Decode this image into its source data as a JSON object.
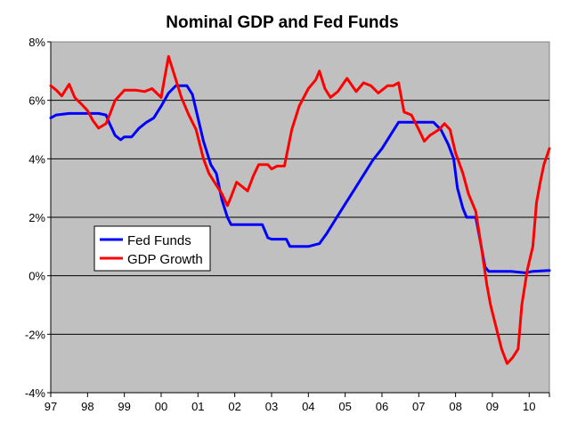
{
  "chart_data": {
    "type": "line",
    "title": "Nominal GDP and Fed Funds",
    "xlabel": "",
    "ylabel": "",
    "xlim": [
      1997,
      2010.55
    ],
    "ylim": [
      -4,
      8
    ],
    "y_ticks": [
      -4,
      -2,
      0,
      2,
      4,
      6,
      8
    ],
    "y_tick_labels": [
      "-4%",
      "-2%",
      "0%",
      "2%",
      "4%",
      "6%",
      "8%"
    ],
    "x_ticks": [
      1997,
      1998,
      1999,
      2000,
      2001,
      2002,
      2003,
      2004,
      2005,
      2006,
      2007,
      2008,
      2009,
      2010
    ],
    "x_tick_labels": [
      "97",
      "98",
      "99",
      "00",
      "01",
      "02",
      "03",
      "04",
      "05",
      "06",
      "07",
      "08",
      "09",
      "10"
    ],
    "grid": "horizontal",
    "plot_background": "#c0c0c0",
    "legend": {
      "position": "left-middle",
      "entries": [
        "Fed Funds",
        "GDP Growth"
      ]
    },
    "series": [
      {
        "name": "Fed Funds",
        "color": "#0000ff",
        "points": [
          [
            1997.0,
            5.4
          ],
          [
            1997.15,
            5.5
          ],
          [
            1997.5,
            5.55
          ],
          [
            1997.9,
            5.55
          ],
          [
            1998.3,
            5.55
          ],
          [
            1998.5,
            5.5
          ],
          [
            1998.6,
            5.2
          ],
          [
            1998.75,
            4.8
          ],
          [
            1998.9,
            4.65
          ],
          [
            1999.0,
            4.75
          ],
          [
            1999.2,
            4.75
          ],
          [
            1999.4,
            5.05
          ],
          [
            1999.6,
            5.25
          ],
          [
            1999.8,
            5.4
          ],
          [
            2000.0,
            5.8
          ],
          [
            2000.2,
            6.25
          ],
          [
            2000.4,
            6.5
          ],
          [
            2000.7,
            6.5
          ],
          [
            2000.85,
            6.2
          ],
          [
            2001.0,
            5.4
          ],
          [
            2001.15,
            4.6
          ],
          [
            2001.35,
            3.8
          ],
          [
            2001.5,
            3.5
          ],
          [
            2001.65,
            2.6
          ],
          [
            2001.8,
            2.0
          ],
          [
            2001.9,
            1.75
          ],
          [
            2002.5,
            1.75
          ],
          [
            2002.75,
            1.75
          ],
          [
            2002.9,
            1.3
          ],
          [
            2003.0,
            1.25
          ],
          [
            2003.4,
            1.25
          ],
          [
            2003.5,
            1.0
          ],
          [
            2004.0,
            1.0
          ],
          [
            2004.3,
            1.1
          ],
          [
            2004.5,
            1.45
          ],
          [
            2004.75,
            1.95
          ],
          [
            2005.0,
            2.45
          ],
          [
            2005.25,
            2.95
          ],
          [
            2005.5,
            3.45
          ],
          [
            2005.75,
            3.95
          ],
          [
            2006.0,
            4.35
          ],
          [
            2006.25,
            4.85
          ],
          [
            2006.45,
            5.25
          ],
          [
            2006.9,
            5.25
          ],
          [
            2007.4,
            5.25
          ],
          [
            2007.6,
            5.0
          ],
          [
            2007.8,
            4.5
          ],
          [
            2007.95,
            4.0
          ],
          [
            2008.05,
            3.0
          ],
          [
            2008.2,
            2.3
          ],
          [
            2008.3,
            2.0
          ],
          [
            2008.55,
            2.0
          ],
          [
            2008.7,
            1.0
          ],
          [
            2008.8,
            0.3
          ],
          [
            2008.9,
            0.15
          ],
          [
            2009.5,
            0.15
          ],
          [
            2009.9,
            0.1
          ],
          [
            2010.1,
            0.15
          ],
          [
            2010.55,
            0.18
          ]
        ]
      },
      {
        "name": "GDP Growth",
        "color": "#ff0000",
        "points": [
          [
            1997.0,
            6.5
          ],
          [
            1997.15,
            6.35
          ],
          [
            1997.3,
            6.15
          ],
          [
            1997.5,
            6.55
          ],
          [
            1997.65,
            6.1
          ],
          [
            1997.85,
            5.85
          ],
          [
            1998.0,
            5.65
          ],
          [
            1998.15,
            5.3
          ],
          [
            1998.3,
            5.05
          ],
          [
            1998.5,
            5.2
          ],
          [
            1998.6,
            5.5
          ],
          [
            1998.75,
            6.0
          ],
          [
            1999.0,
            6.35
          ],
          [
            1999.3,
            6.35
          ],
          [
            1999.55,
            6.3
          ],
          [
            1999.75,
            6.4
          ],
          [
            2000.0,
            6.1
          ],
          [
            2000.1,
            6.8
          ],
          [
            2000.2,
            7.5
          ],
          [
            2000.35,
            6.9
          ],
          [
            2000.55,
            6.1
          ],
          [
            2000.75,
            5.5
          ],
          [
            2000.95,
            5.0
          ],
          [
            2001.15,
            4.0
          ],
          [
            2001.3,
            3.5
          ],
          [
            2001.5,
            3.1
          ],
          [
            2001.65,
            2.8
          ],
          [
            2001.8,
            2.4
          ],
          [
            2001.9,
            2.7
          ],
          [
            2002.05,
            3.2
          ],
          [
            2002.2,
            3.05
          ],
          [
            2002.35,
            2.9
          ],
          [
            2002.5,
            3.4
          ],
          [
            2002.65,
            3.8
          ],
          [
            2002.9,
            3.8
          ],
          [
            2003.0,
            3.65
          ],
          [
            2003.15,
            3.75
          ],
          [
            2003.35,
            3.75
          ],
          [
            2003.55,
            5.0
          ],
          [
            2003.75,
            5.8
          ],
          [
            2004.0,
            6.4
          ],
          [
            2004.2,
            6.7
          ],
          [
            2004.3,
            7.0
          ],
          [
            2004.45,
            6.4
          ],
          [
            2004.6,
            6.1
          ],
          [
            2004.8,
            6.3
          ],
          [
            2005.05,
            6.75
          ],
          [
            2005.3,
            6.3
          ],
          [
            2005.5,
            6.6
          ],
          [
            2005.7,
            6.5
          ],
          [
            2005.9,
            6.25
          ],
          [
            2006.15,
            6.5
          ],
          [
            2006.3,
            6.5
          ],
          [
            2006.45,
            6.6
          ],
          [
            2006.6,
            5.6
          ],
          [
            2006.8,
            5.5
          ],
          [
            2007.0,
            5.0
          ],
          [
            2007.15,
            4.6
          ],
          [
            2007.3,
            4.8
          ],
          [
            2007.55,
            5.0
          ],
          [
            2007.7,
            5.2
          ],
          [
            2007.85,
            5.0
          ],
          [
            2008.0,
            4.2
          ],
          [
            2008.2,
            3.5
          ],
          [
            2008.35,
            2.8
          ],
          [
            2008.55,
            2.2
          ],
          [
            2008.7,
            1.0
          ],
          [
            2008.85,
            -0.3
          ],
          [
            2008.95,
            -1.0
          ],
          [
            2009.05,
            -1.5
          ],
          [
            2009.15,
            -2.0
          ],
          [
            2009.25,
            -2.5
          ],
          [
            2009.4,
            -3.0
          ],
          [
            2009.55,
            -2.8
          ],
          [
            2009.7,
            -2.5
          ],
          [
            2009.8,
            -1.0
          ],
          [
            2009.95,
            0.2
          ],
          [
            2010.1,
            1.0
          ],
          [
            2010.2,
            2.5
          ],
          [
            2010.3,
            3.2
          ],
          [
            2010.4,
            3.8
          ],
          [
            2010.55,
            4.35
          ]
        ]
      }
    ]
  }
}
